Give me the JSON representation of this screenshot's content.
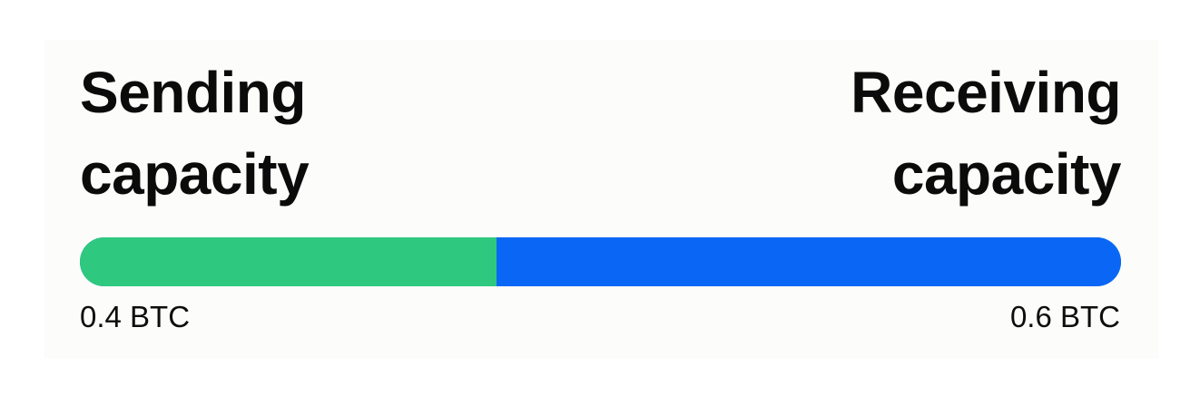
{
  "sending": {
    "label_line1": "Sending",
    "label_line2": "capacity",
    "amount": "0.4 BTC",
    "fraction": 0.4,
    "color": "#2ec97e"
  },
  "receiving": {
    "label_line1": "Receiving",
    "label_line2": "capacity",
    "amount": "0.6 BTC",
    "fraction": 0.6,
    "color": "#0a67f6"
  }
}
